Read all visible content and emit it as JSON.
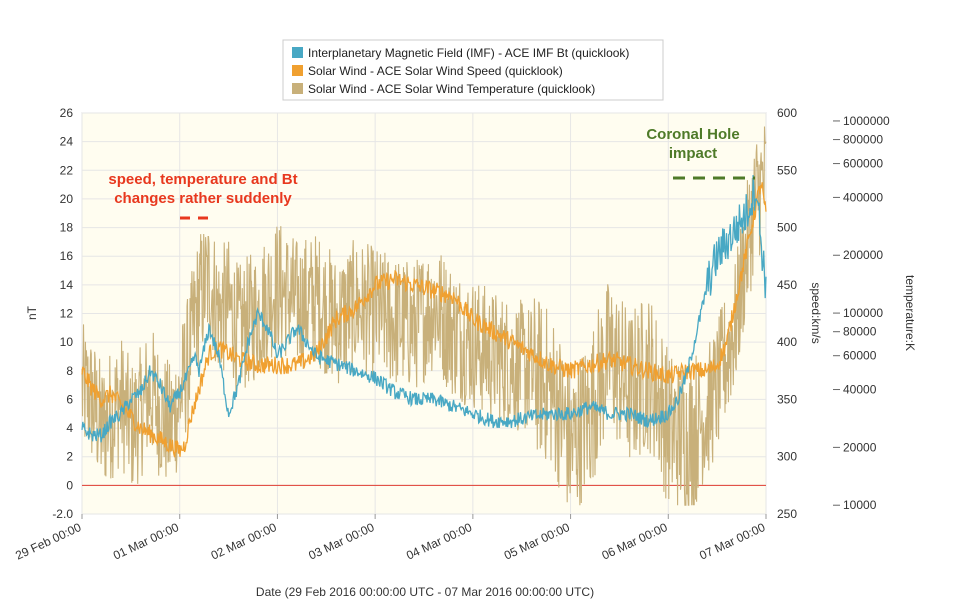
{
  "chart_data": {
    "type": "line",
    "xlabel": "Date (29 Feb 2016 00:00:00 UTC - 07 Mar 2016 00:00:00 UTC)",
    "x_ticks": [
      "29 Feb 00:00",
      "01 Mar 00:00",
      "02 Mar 00:00",
      "03 Mar 00:00",
      "04 Mar 00:00",
      "05 Mar 00:00",
      "06 Mar 00:00",
      "07 Mar 00:00"
    ],
    "x_unit": "days since 29 Feb 2016 00:00 UTC",
    "xlim": [
      0,
      7
    ],
    "y_left": {
      "label": "nT",
      "ylim": [
        -2,
        26
      ],
      "ticks": [
        "26",
        "24",
        "22",
        "20",
        "18",
        "16",
        "14",
        "12",
        "10",
        "8",
        "6",
        "4",
        "2",
        "0",
        "-2.0"
      ],
      "tick_values": [
        26,
        24,
        22,
        20,
        18,
        16,
        14,
        12,
        10,
        8,
        6,
        4,
        2,
        0,
        -2
      ]
    },
    "y_right1": {
      "label": "speed:km/s",
      "ylim": [
        250,
        600
      ],
      "ticks": [
        "600",
        "550",
        "500",
        "450",
        "400",
        "350",
        "300",
        "250"
      ],
      "tick_values": [
        600,
        550,
        500,
        450,
        400,
        350,
        300,
        250
      ]
    },
    "y_right2": {
      "label": "temperature:K",
      "scale": "log",
      "ylim": [
        9000,
        1100000
      ],
      "ticks": [
        "1000000",
        "800000",
        "600000",
        "400000",
        "200000",
        "100000",
        "80000",
        "60000",
        "40000",
        "20000",
        "10000"
      ],
      "tick_values": [
        1000000,
        800000,
        600000,
        400000,
        200000,
        100000,
        80000,
        60000,
        40000,
        20000,
        10000
      ]
    },
    "grid": true,
    "background": "#fffdf0",
    "zero_line_color": "#e03c31",
    "legend_position": "top-center",
    "series": [
      {
        "name": "Interplanetary Magnetic Field (IMF) - ACE IMF Bt (quicklook)",
        "axis": "y_left",
        "color": "#48a8c4",
        "x": [
          0,
          0.1,
          0.2,
          0.3,
          0.4,
          0.5,
          0.6,
          0.7,
          0.8,
          0.9,
          1.0,
          1.1,
          1.15,
          1.2,
          1.3,
          1.4,
          1.5,
          1.6,
          1.7,
          1.8,
          1.9,
          2.0,
          2.2,
          2.4,
          2.6,
          2.8,
          3.0,
          3.2,
          3.4,
          3.6,
          3.8,
          4.0,
          4.2,
          4.4,
          4.6,
          4.8,
          5.0,
          5.2,
          5.4,
          5.6,
          5.8,
          6.0,
          6.1,
          6.2,
          6.3,
          6.4,
          6.5,
          6.6,
          6.7,
          6.8,
          6.85,
          6.9,
          6.95,
          7.0
        ],
        "y": [
          4,
          3.5,
          3.5,
          4.5,
          5,
          6,
          6.5,
          8,
          7,
          5.5,
          6.5,
          8,
          9,
          8,
          11,
          9,
          5,
          7,
          10,
          12,
          11,
          9,
          11,
          9,
          8.5,
          8,
          7.5,
          6.5,
          6,
          6,
          5.5,
          5,
          4.5,
          4.5,
          4.8,
          5,
          5,
          5.5,
          5,
          5,
          4.5,
          5,
          6,
          8,
          11,
          14,
          16,
          17,
          18,
          19,
          20,
          21,
          17,
          14
        ]
      },
      {
        "name": "Solar Wind - ACE Solar Wind Speed (quicklook)",
        "axis": "y_right1",
        "color": "#f0a030",
        "x": [
          0,
          0.1,
          0.2,
          0.3,
          0.4,
          0.5,
          0.6,
          0.7,
          0.8,
          0.9,
          1.0,
          1.05,
          1.1,
          1.2,
          1.3,
          1.4,
          1.5,
          1.6,
          1.8,
          2.0,
          2.2,
          2.4,
          2.6,
          2.8,
          3.0,
          3.2,
          3.4,
          3.6,
          3.8,
          4.0,
          4.2,
          4.4,
          4.6,
          4.8,
          5.0,
          5.2,
          5.4,
          5.6,
          5.8,
          6.0,
          6.2,
          6.4,
          6.5,
          6.6,
          6.7,
          6.8,
          6.9,
          6.95,
          7.0
        ],
        "y": [
          375,
          360,
          350,
          355,
          345,
          335,
          325,
          320,
          315,
          310,
          305,
          310,
          330,
          360,
          390,
          395,
          390,
          385,
          380,
          380,
          380,
          390,
          420,
          430,
          450,
          455,
          450,
          445,
          440,
          420,
          410,
          400,
          390,
          380,
          375,
          380,
          385,
          380,
          375,
          370,
          375,
          375,
          380,
          400,
          440,
          480,
          520,
          540,
          510
        ]
      },
      {
        "name": "Solar Wind - ACE Solar Wind Temperature (quicklook)",
        "axis": "y_right2",
        "color": "#c8b07a",
        "x": [
          0,
          0.1,
          0.2,
          0.3,
          0.4,
          0.5,
          0.6,
          0.7,
          0.8,
          0.9,
          1.0,
          1.1,
          1.2,
          1.3,
          1.4,
          1.5,
          1.6,
          1.8,
          2.0,
          2.2,
          2.4,
          2.6,
          2.8,
          3.0,
          3.2,
          3.4,
          3.6,
          3.8,
          4.0,
          4.2,
          4.4,
          4.6,
          4.8,
          5.0,
          5.2,
          5.4,
          5.6,
          5.8,
          6.0,
          6.2,
          6.4,
          6.5,
          6.6,
          6.7,
          6.8,
          6.9,
          7.0
        ],
        "y": [
          40000,
          35000,
          25000,
          30000,
          35000,
          25000,
          30000,
          40000,
          30000,
          25000,
          35000,
          60000,
          120000,
          150000,
          100000,
          110000,
          80000,
          100000,
          140000,
          110000,
          120000,
          90000,
          110000,
          100000,
          90000,
          85000,
          110000,
          80000,
          70000,
          60000,
          55000,
          50000,
          40000,
          20000,
          30000,
          60000,
          40000,
          50000,
          25000,
          22000,
          30000,
          40000,
          60000,
          90000,
          200000,
          400000,
          500000
        ]
      }
    ],
    "annotations": [
      {
        "text_lines": [
          "speed, temperature and Bt",
          "changes rather suddenly"
        ],
        "color": "#e8381e"
      },
      {
        "text_lines": [
          "Coronal Hole",
          "impact"
        ],
        "color": "#4e7a28"
      }
    ]
  }
}
